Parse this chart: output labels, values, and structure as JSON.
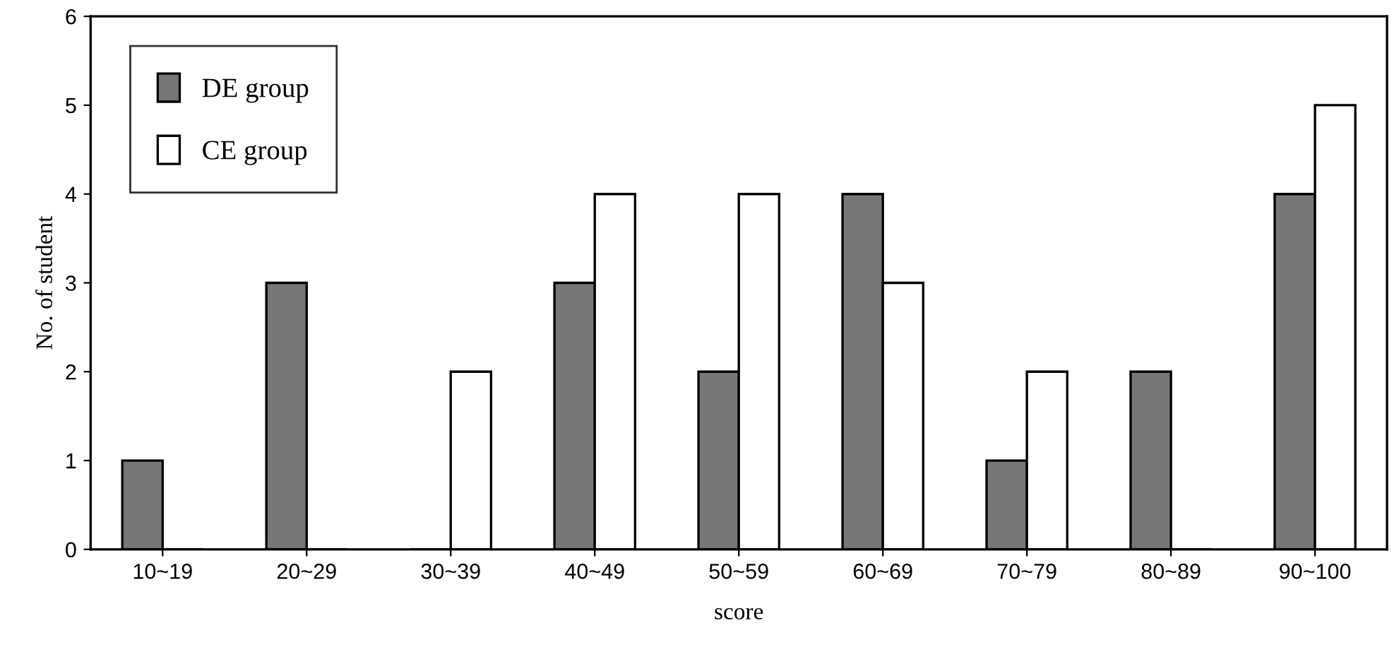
{
  "chart_data": {
    "type": "bar",
    "xlabel": "score",
    "ylabel": "No. of student",
    "categories": [
      "10~19",
      "20~29",
      "30~39",
      "40~49",
      "50~59",
      "60~69",
      "70~79",
      "80~89",
      "90~100"
    ],
    "series": [
      {
        "name": "DE group",
        "color": "#777777",
        "values": [
          1,
          3,
          0,
          3,
          2,
          4,
          1,
          2,
          4
        ]
      },
      {
        "name": "CE group",
        "color": "#ffffff",
        "values": [
          0,
          0,
          2,
          4,
          4,
          3,
          2,
          0,
          5
        ]
      }
    ],
    "ylim": [
      0,
      6
    ],
    "yticks": [
      0,
      1,
      2,
      3,
      4,
      5,
      6
    ],
    "grid": false,
    "legend": "top left"
  }
}
